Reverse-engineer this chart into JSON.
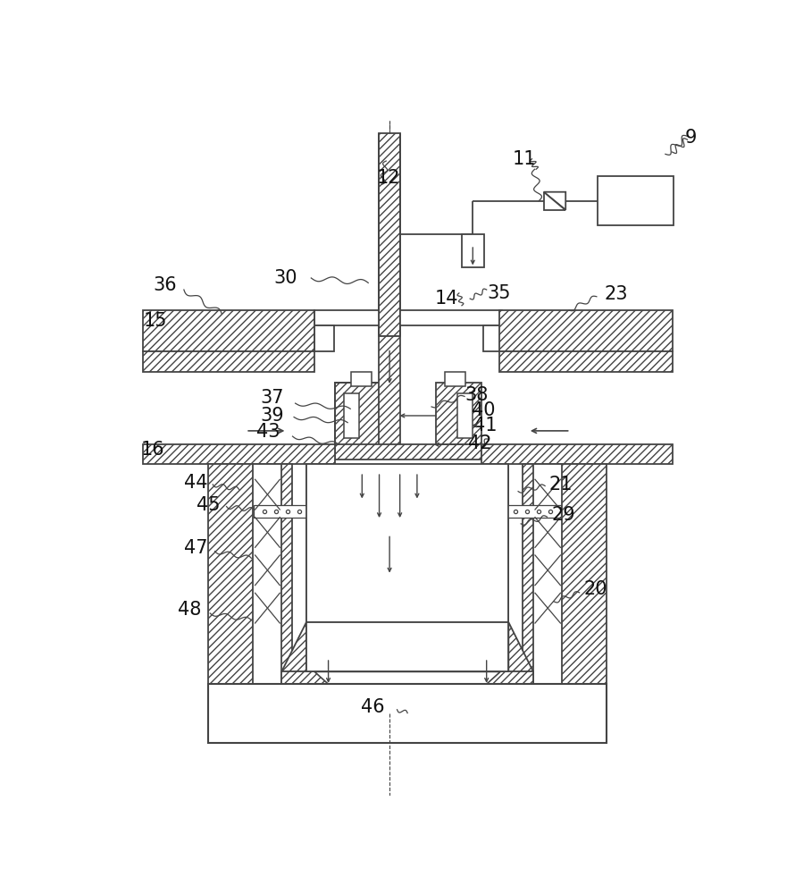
{
  "bg_color": "#ffffff",
  "lc": "#444444",
  "figsize": [
    8.9,
    10.0
  ],
  "dpi": 100
}
